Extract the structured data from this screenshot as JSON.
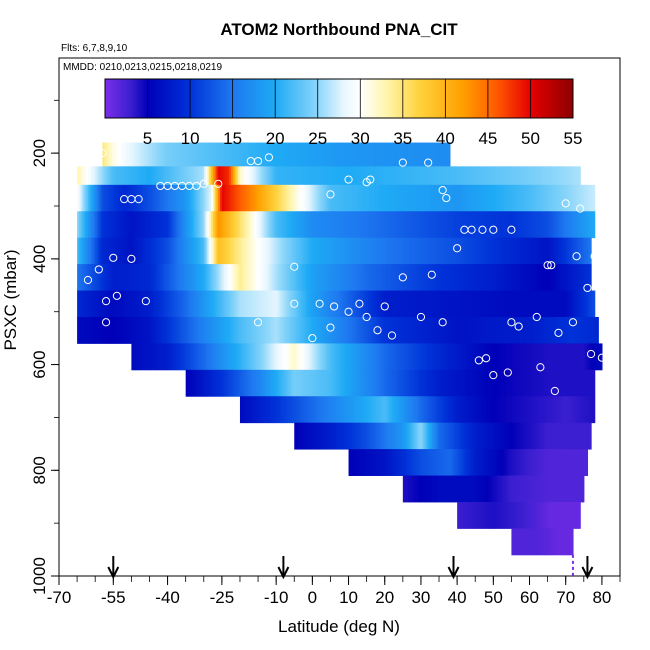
{
  "chart_data": {
    "type": "heatmap",
    "title": "ATOM2 Northbound PNA_CIT",
    "flights_label": "Flts: 6,7,8,9,10",
    "dates_label": "MMDD: 0210,0213,0215,0218,0219",
    "xlabel": "Latitude (deg N)",
    "ylabel": "PSXC (mbar)",
    "xlim": [
      -70,
      85
    ],
    "ylim": [
      1000,
      20
    ],
    "x_ticks": [
      -70,
      -55,
      -40,
      -25,
      -10,
      0,
      10,
      20,
      30,
      40,
      50,
      60,
      70,
      80
    ],
    "y_ticks": [
      200,
      400,
      600,
      800,
      1000
    ],
    "colorbar": {
      "range": [
        0,
        55
      ],
      "ticks": [
        5,
        10,
        15,
        20,
        25,
        30,
        35,
        40,
        45,
        50,
        55
      ],
      "stops": [
        {
          "v": 0,
          "c": "#7b2ee8"
        },
        {
          "v": 3,
          "c": "#3b1fd0"
        },
        {
          "v": 5,
          "c": "#0000b8"
        },
        {
          "v": 10,
          "c": "#0032d8"
        },
        {
          "v": 15,
          "c": "#1e78f0"
        },
        {
          "v": 20,
          "c": "#1eaaf5"
        },
        {
          "v": 25,
          "c": "#8cd6fa"
        },
        {
          "v": 28,
          "c": "#e6f6ff"
        },
        {
          "v": 30,
          "c": "#ffffff"
        },
        {
          "v": 33,
          "c": "#fff6b0"
        },
        {
          "v": 37,
          "c": "#ffd23c"
        },
        {
          "v": 42,
          "c": "#ffa000"
        },
        {
          "v": 46,
          "c": "#ff5a00"
        },
        {
          "v": 50,
          "c": "#e60000"
        },
        {
          "v": 55,
          "c": "#8c0000"
        }
      ]
    },
    "layers": [
      {
        "p": [
          180,
          225
        ],
        "xmin": -58,
        "xmax": 38,
        "values": [
          [
            -58,
            35
          ],
          [
            -55,
            31
          ],
          [
            -50,
            28
          ],
          [
            -40,
            24
          ],
          [
            -25,
            22
          ],
          [
            -10,
            20
          ],
          [
            10,
            18
          ],
          [
            38,
            17
          ]
        ]
      },
      {
        "p": [
          225,
          260
        ],
        "xmin": -65,
        "xmax": 74,
        "values": [
          [
            -65,
            33
          ],
          [
            -55,
            22
          ],
          [
            -45,
            20
          ],
          [
            -30,
            26
          ],
          [
            -26,
            50
          ],
          [
            -23,
            48
          ],
          [
            -20,
            32
          ],
          [
            -10,
            21
          ],
          [
            10,
            20
          ],
          [
            40,
            22
          ],
          [
            60,
            24
          ],
          [
            74,
            26
          ]
        ]
      },
      {
        "p": [
          260,
          310
        ],
        "xmin": -65,
        "xmax": 78,
        "values": [
          [
            -65,
            30
          ],
          [
            -58,
            12
          ],
          [
            -52,
            9
          ],
          [
            -45,
            12
          ],
          [
            -35,
            18
          ],
          [
            -28,
            28
          ],
          [
            -25,
            50
          ],
          [
            -15,
            42
          ],
          [
            -5,
            32
          ],
          [
            5,
            22
          ],
          [
            20,
            20
          ],
          [
            40,
            18
          ],
          [
            60,
            22
          ],
          [
            78,
            27
          ]
        ]
      },
      {
        "p": [
          310,
          360
        ],
        "xmin": -65,
        "xmax": 78,
        "values": [
          [
            -65,
            25
          ],
          [
            -58,
            10
          ],
          [
            -50,
            7
          ],
          [
            -40,
            10
          ],
          [
            -30,
            25
          ],
          [
            -26,
            43
          ],
          [
            -18,
            33
          ],
          [
            -10,
            22
          ],
          [
            0,
            17
          ],
          [
            20,
            14
          ],
          [
            40,
            11
          ],
          [
            55,
            10
          ],
          [
            65,
            12
          ],
          [
            78,
            20
          ]
        ]
      },
      {
        "p": [
          360,
          410
        ],
        "xmin": -65,
        "xmax": 77,
        "values": [
          [
            -65,
            22
          ],
          [
            -58,
            9
          ],
          [
            -50,
            7
          ],
          [
            -40,
            12
          ],
          [
            -30,
            22
          ],
          [
            -26,
            39
          ],
          [
            -15,
            30
          ],
          [
            -8,
            25
          ],
          [
            0,
            20
          ],
          [
            20,
            15
          ],
          [
            40,
            12
          ],
          [
            55,
            9
          ],
          [
            65,
            7
          ],
          [
            77,
            15
          ]
        ]
      },
      {
        "p": [
          410,
          460
        ],
        "xmin": -65,
        "xmax": 77,
        "values": [
          [
            -65,
            15
          ],
          [
            -55,
            8
          ],
          [
            -45,
            9
          ],
          [
            -30,
            20
          ],
          [
            -20,
            34
          ],
          [
            -10,
            26
          ],
          [
            0,
            19
          ],
          [
            15,
            14
          ],
          [
            35,
            10
          ],
          [
            50,
            8
          ],
          [
            65,
            5
          ],
          [
            77,
            10
          ]
        ]
      },
      {
        "p": [
          460,
          510
        ],
        "xmin": -65,
        "xmax": 78,
        "values": [
          [
            -65,
            9
          ],
          [
            -55,
            6
          ],
          [
            -45,
            8
          ],
          [
            -35,
            14
          ],
          [
            -20,
            26
          ],
          [
            -10,
            28
          ],
          [
            0,
            19
          ],
          [
            20,
            8
          ],
          [
            40,
            7
          ],
          [
            55,
            6
          ],
          [
            70,
            6
          ],
          [
            78,
            12
          ]
        ]
      },
      {
        "p": [
          510,
          560
        ],
        "xmin": -65,
        "xmax": 79,
        "values": [
          [
            -65,
            6
          ],
          [
            -55,
            5
          ],
          [
            -45,
            7
          ],
          [
            -35,
            13
          ],
          [
            -20,
            22
          ],
          [
            -10,
            26
          ],
          [
            0,
            20
          ],
          [
            20,
            10
          ],
          [
            40,
            7
          ],
          [
            60,
            8
          ],
          [
            72,
            10
          ],
          [
            79,
            9
          ]
        ]
      },
      {
        "p": [
          560,
          610
        ],
        "xmin": -50,
        "xmax": 80,
        "values": [
          [
            -50,
            6
          ],
          [
            -40,
            8
          ],
          [
            -30,
            14
          ],
          [
            -15,
            24
          ],
          [
            -5,
            32
          ],
          [
            5,
            22
          ],
          [
            20,
            14
          ],
          [
            35,
            9
          ],
          [
            50,
            5
          ],
          [
            65,
            4
          ],
          [
            75,
            4
          ],
          [
            80,
            6
          ]
        ]
      },
      {
        "p": [
          610,
          660
        ],
        "xmin": -35,
        "xmax": 78,
        "values": [
          [
            -35,
            5
          ],
          [
            -25,
            10
          ],
          [
            -15,
            16
          ],
          [
            -5,
            24
          ],
          [
            5,
            22
          ],
          [
            20,
            14
          ],
          [
            35,
            8
          ],
          [
            50,
            5
          ],
          [
            65,
            4
          ],
          [
            78,
            4
          ]
        ]
      },
      {
        "p": [
          660,
          710
        ],
        "xmin": -20,
        "xmax": 78,
        "values": [
          [
            -20,
            6
          ],
          [
            -10,
            10
          ],
          [
            0,
            14
          ],
          [
            10,
            18
          ],
          [
            20,
            22
          ],
          [
            30,
            14
          ],
          [
            40,
            8
          ],
          [
            50,
            5
          ],
          [
            60,
            4
          ],
          [
            70,
            3
          ],
          [
            78,
            4
          ]
        ]
      },
      {
        "p": [
          710,
          760
        ],
        "xmin": -5,
        "xmax": 77,
        "values": [
          [
            -5,
            5
          ],
          [
            5,
            8
          ],
          [
            15,
            12
          ],
          [
            25,
            18
          ],
          [
            30,
            25
          ],
          [
            35,
            14
          ],
          [
            45,
            8
          ],
          [
            55,
            5
          ],
          [
            65,
            3
          ],
          [
            77,
            3
          ]
        ]
      },
      {
        "p": [
          760,
          810
        ],
        "xmin": 10,
        "xmax": 76,
        "values": [
          [
            10,
            5
          ],
          [
            20,
            7
          ],
          [
            30,
            12
          ],
          [
            38,
            14
          ],
          [
            45,
            8
          ],
          [
            55,
            4
          ],
          [
            65,
            2
          ],
          [
            76,
            2
          ]
        ]
      },
      {
        "p": [
          810,
          860
        ],
        "xmin": 25,
        "xmax": 75,
        "values": [
          [
            25,
            4
          ],
          [
            35,
            6
          ],
          [
            45,
            6
          ],
          [
            55,
            3
          ],
          [
            65,
            2
          ],
          [
            75,
            2
          ]
        ]
      },
      {
        "p": [
          860,
          910
        ],
        "xmin": 40,
        "xmax": 74,
        "values": [
          [
            40,
            3
          ],
          [
            50,
            4
          ],
          [
            58,
            3
          ],
          [
            66,
            1
          ],
          [
            74,
            1
          ]
        ]
      },
      {
        "p": [
          910,
          960
        ],
        "xmin": 55,
        "xmax": 72,
        "values": [
          [
            55,
            2
          ],
          [
            62,
            2
          ],
          [
            68,
            1
          ],
          [
            72,
            1
          ]
        ]
      }
    ],
    "observations": [
      [
        -65,
        200
      ],
      [
        -66,
        230
      ],
      [
        -60,
        205
      ],
      [
        -58,
        200
      ],
      [
        -52,
        287
      ],
      [
        -50,
        287
      ],
      [
        -48,
        287
      ],
      [
        -42,
        262
      ],
      [
        -40,
        262
      ],
      [
        -38,
        262
      ],
      [
        -36,
        262
      ],
      [
        -34,
        262
      ],
      [
        -32,
        262
      ],
      [
        -30,
        258
      ],
      [
        -26,
        258
      ],
      [
        -17,
        215
      ],
      [
        -15,
        215
      ],
      [
        -12,
        208
      ],
      [
        -3,
        280
      ],
      [
        5,
        278
      ],
      [
        10,
        250
      ],
      [
        15,
        255
      ],
      [
        16,
        250
      ],
      [
        25,
        218
      ],
      [
        32,
        218
      ],
      [
        36,
        270
      ],
      [
        37,
        285
      ],
      [
        -62,
        440
      ],
      [
        -59,
        420
      ],
      [
        -57,
        480
      ],
      [
        -55,
        398
      ],
      [
        -54,
        470
      ],
      [
        -50,
        400
      ],
      [
        -46,
        480
      ],
      [
        -15,
        520
      ],
      [
        -5,
        415
      ],
      [
        -5,
        485
      ],
      [
        0,
        550
      ],
      [
        2,
        485
      ],
      [
        5,
        530
      ],
      [
        6,
        490
      ],
      [
        10,
        500
      ],
      [
        13,
        485
      ],
      [
        15,
        510
      ],
      [
        18,
        535
      ],
      [
        20,
        490
      ],
      [
        22,
        545
      ],
      [
        25,
        435
      ],
      [
        30,
        510
      ],
      [
        33,
        430
      ],
      [
        36,
        520
      ],
      [
        40,
        380
      ],
      [
        42,
        345
      ],
      [
        44,
        345
      ],
      [
        47,
        345
      ],
      [
        50,
        345
      ],
      [
        55,
        345
      ],
      [
        46,
        592
      ],
      [
        48,
        588
      ],
      [
        50,
        620
      ],
      [
        54,
        615
      ],
      [
        55,
        520
      ],
      [
        57,
        528
      ],
      [
        62,
        510
      ],
      [
        63,
        605
      ],
      [
        65,
        412
      ],
      [
        66,
        412
      ],
      [
        67,
        650
      ],
      [
        68,
        540
      ],
      [
        70,
        295
      ],
      [
        72,
        520
      ],
      [
        73,
        395
      ],
      [
        74,
        305
      ],
      [
        76,
        455
      ],
      [
        77,
        580
      ],
      [
        78,
        395
      ],
      [
        80,
        587
      ],
      [
        -57,
        520
      ]
    ],
    "flight_markers": [
      -55,
      -8,
      39,
      76
    ],
    "dashed_marker": 72
  }
}
